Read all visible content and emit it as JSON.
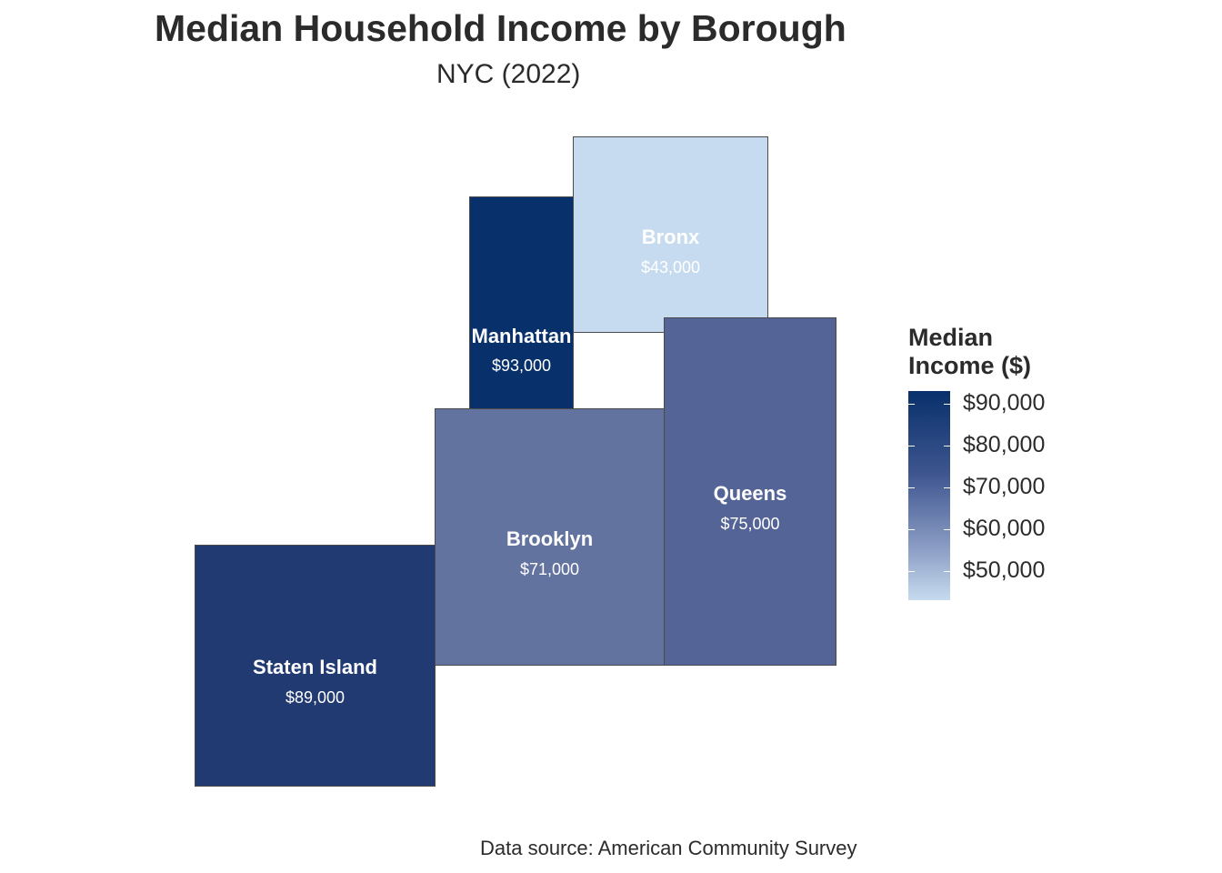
{
  "title": "Median Household Income by Borough",
  "subtitle": "NYC (2022)",
  "caption": "Data source: American Community Survey",
  "legend": {
    "title_line1": "Median",
    "title_line2": "Income ($)",
    "min_value": 43000,
    "max_value": 93000,
    "low_color": "#c6dbef",
    "high_color": "#08306b",
    "ticks": [
      {
        "value": 90000,
        "label": "$90,000"
      },
      {
        "value": 80000,
        "label": "$80,000"
      },
      {
        "value": 70000,
        "label": "$70,000"
      },
      {
        "value": 60000,
        "label": "$60,000"
      },
      {
        "value": 50000,
        "label": "$50,000"
      }
    ]
  },
  "boroughs": [
    {
      "name": "Bronx",
      "income_label": "$43,000",
      "income": 43000,
      "color": "#c6dbef"
    },
    {
      "name": "Manhattan",
      "income_label": "$93,000",
      "income": 93000,
      "color": "#08306b"
    },
    {
      "name": "Queens",
      "income_label": "$75,000",
      "income": 75000,
      "color": "#546496"
    },
    {
      "name": "Brooklyn",
      "income_label": "$71,000",
      "income": 71000,
      "color": "#6373a0"
    },
    {
      "name": "Staten Island",
      "income_label": "$89,000",
      "income": 89000,
      "color": "#213a72"
    }
  ]
}
